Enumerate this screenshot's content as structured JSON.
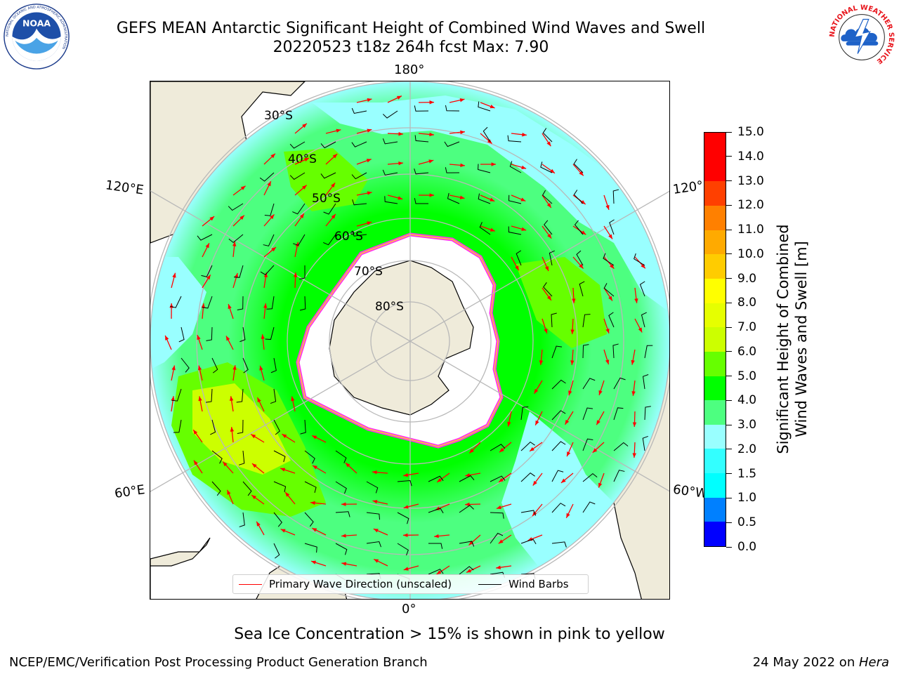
{
  "header": {
    "line1": "GEFS MEAN Antarctic Significant Height of Combined Wind Waves and Swell",
    "line2": "20220523 t18z 264h fcst   Max: 7.90"
  },
  "map": {
    "projection": "south-polar-stereographic",
    "lon_labels": {
      "top": "180°",
      "bottom": "0°",
      "upper_left": "120°E",
      "upper_right": "120°",
      "lower_left": "60°E",
      "lower_right": "60°W"
    },
    "lat_labels": [
      "30°S",
      "40°S",
      "50°S",
      "60°S",
      "70°S",
      "80°S"
    ],
    "colors": {
      "land": "#efebda",
      "ice_edge_pink": "#ff33ee",
      "ice_edge_yellow": "#ffcc33",
      "wave_arrow": "#ff0000",
      "wind_barb": "#000000",
      "grid": "#b8b8b8"
    }
  },
  "legend": {
    "primary_wave": "Primary Wave Direction (unscaled)",
    "wind_barbs": "Wind Barbs"
  },
  "colorbar": {
    "label_line1": "Significant Height of Combined",
    "label_line2": "Wind Waves and Swell [m]",
    "ticks": [
      "0.0",
      "0.5",
      "1.0",
      "1.5",
      "2.0",
      "3.0",
      "4.0",
      "5.0",
      "6.0",
      "7.0",
      "8.0",
      "9.0",
      "10.0",
      "11.0",
      "12.0",
      "13.0",
      "14.0",
      "15.0"
    ],
    "colors": [
      "#0000ff",
      "#0080ff",
      "#00ffff",
      "#33ffff",
      "#99ffff",
      "#4dff80",
      "#00ff00",
      "#66ff00",
      "#ccff00",
      "#e6ff00",
      "#ffff00",
      "#ffcc00",
      "#ffaa00",
      "#ff8000",
      "#ff4000",
      "#ff0000",
      "#ff0000"
    ]
  },
  "footer": {
    "subtitle": "Sea Ice Concentration > 15% is shown in pink to yellow",
    "credit": "NCEP/EMC/Verification Post Processing Product Generation Branch",
    "date": "24 May 2022 on ",
    "host": "Hera"
  },
  "logos": {
    "noaa_text": "NOAA",
    "noaa_ring": "NATIONAL OCEANIC AND ATMOSPHERIC ADMINISTRATION",
    "nws_ring": "NATIONAL WEATHER SERVICE"
  }
}
